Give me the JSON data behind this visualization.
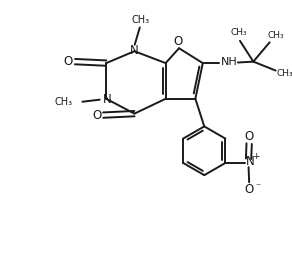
{
  "bg_color": "#ffffff",
  "line_color": "#1a1a1a",
  "line_width": 1.4,
  "figsize": [
    2.92,
    2.54
  ],
  "dpi": 100,
  "xlim": [
    0,
    9.5
  ],
  "ylim": [
    0,
    8.3
  ]
}
